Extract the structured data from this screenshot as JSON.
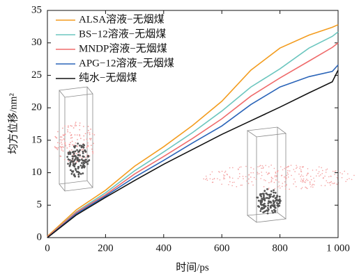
{
  "chart_data": {
    "type": "line",
    "x_label": "时间/ps",
    "y_label": "均方位移/nm²",
    "x": [
      0,
      100,
      200,
      300,
      400,
      500,
      600,
      700,
      800,
      900,
      980,
      1000
    ],
    "series": [
      {
        "name": "ALSA溶液−无烟煤",
        "color": "#f39c1e",
        "values": [
          0.2,
          4.3,
          7.3,
          11,
          14,
          17.3,
          21,
          25.8,
          29.2,
          31.2,
          32.4,
          32.8
        ]
      },
      {
        "name": "BS−12溶液−无烟煤",
        "color": "#6cc6bf",
        "values": [
          0.1,
          4,
          6.9,
          10.3,
          13.2,
          16.2,
          19.5,
          23.2,
          26,
          29.2,
          31,
          31.7
        ]
      },
      {
        "name": "MNDP溶液−无烟煤",
        "color": "#ef6b6b",
        "values": [
          0.1,
          3.9,
          6.6,
          9.8,
          12.5,
          15.3,
          18.3,
          21.8,
          24.6,
          27.2,
          29.3,
          30
        ]
      },
      {
        "name": "APG−12溶液−无烟煤",
        "color": "#2a64b8",
        "values": [
          0,
          3.7,
          6.4,
          9.3,
          11.9,
          14.6,
          17.2,
          20.5,
          23.2,
          24.8,
          25.6,
          26.6
        ]
      },
      {
        "name": "纯水−无烟煤",
        "color": "#111111",
        "values": [
          0,
          3.5,
          6.2,
          8.8,
          11.3,
          13.6,
          15.9,
          18,
          20.1,
          22.3,
          24,
          25.8
        ]
      }
    ],
    "xlim": [
      0,
      1000
    ],
    "xticks": [
      0,
      200,
      400,
      600,
      800,
      {
        "value": 1000,
        "label": "1 000"
      }
    ],
    "ylim": [
      0,
      35
    ],
    "yticks": [
      0,
      5,
      10,
      15,
      20,
      25,
      30,
      35
    ],
    "legend": "upper left"
  }
}
